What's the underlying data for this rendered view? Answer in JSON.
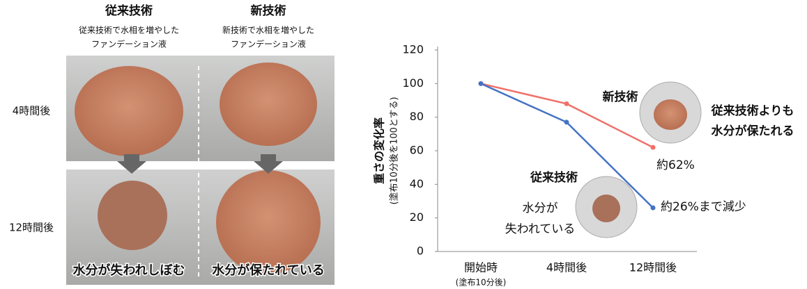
{
  "photo_panel": {
    "columns": [
      {
        "title": "従来技術",
        "description": [
          "従来技術で水相を増やした",
          "ファンデーション液"
        ],
        "caption": "水分が失われしぼむ"
      },
      {
        "title": "新技術",
        "description": [
          "新技術で水相を増やした",
          "ファンデーション液"
        ],
        "caption": "水分が保たれている"
      }
    ],
    "rows": [
      "4時間後",
      "12時間後"
    ]
  },
  "chart_data": {
    "type": "line",
    "y_label": "重さの変化率",
    "y_sublabel": "(塗布10分後を100とする)",
    "categories": [
      "開始時",
      "4時間後",
      "12時間後"
    ],
    "category_notes": [
      "(塗布10分後)",
      null,
      null
    ],
    "series": [
      {
        "name": "新技術",
        "color": "#f0706a",
        "values": [
          100,
          88,
          62
        ],
        "value_labels": [
          null,
          null,
          "約62%"
        ]
      },
      {
        "name": "従来技術",
        "color": "#4472c4",
        "values": [
          100,
          77,
          26
        ],
        "value_labels": [
          null,
          null,
          "約26%まで減少"
        ]
      }
    ],
    "annotations": [
      [
        "従来技術よりも",
        "水分が保たれる"
      ],
      [
        "水分が",
        "失われている"
      ]
    ],
    "ylim": [
      0,
      120
    ],
    "yticks": [
      0,
      20,
      40,
      60,
      80,
      100,
      120
    ]
  }
}
